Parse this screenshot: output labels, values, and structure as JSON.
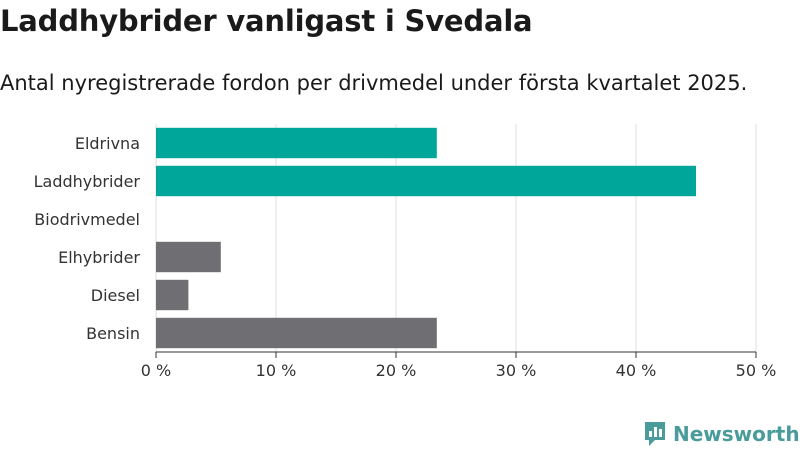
{
  "title": "Laddhybrider vanligast i Svedala",
  "subtitle": "Antal nyregistrerade fordon per drivmedel under första kvartalet 2025.",
  "brand": "Newsworthy",
  "colors": {
    "highlight": "#00a69a",
    "other": "#6f6e73",
    "grid": "#dddddd",
    "brand": "#4a9b9b"
  },
  "chart_data": {
    "type": "bar",
    "orientation": "horizontal",
    "categories": [
      "Eldrivna",
      "Laddhybrider",
      "Biodrivmedel",
      "Elhybrider",
      "Diesel",
      "Bensin"
    ],
    "values": [
      23.4,
      45.0,
      0,
      5.4,
      2.7,
      23.4
    ],
    "bar_colors": [
      "#00a69a",
      "#00a69a",
      "#00a69a",
      "#6f6e73",
      "#6f6e73",
      "#6f6e73"
    ],
    "xlim": [
      0,
      50
    ],
    "xticks": [
      0,
      10,
      20,
      30,
      40,
      50
    ],
    "xtick_labels": [
      "0 %",
      "10 %",
      "20 %",
      "30 %",
      "40 %",
      "50 %"
    ],
    "grid": "vertical",
    "xlabel": "",
    "ylabel": ""
  }
}
